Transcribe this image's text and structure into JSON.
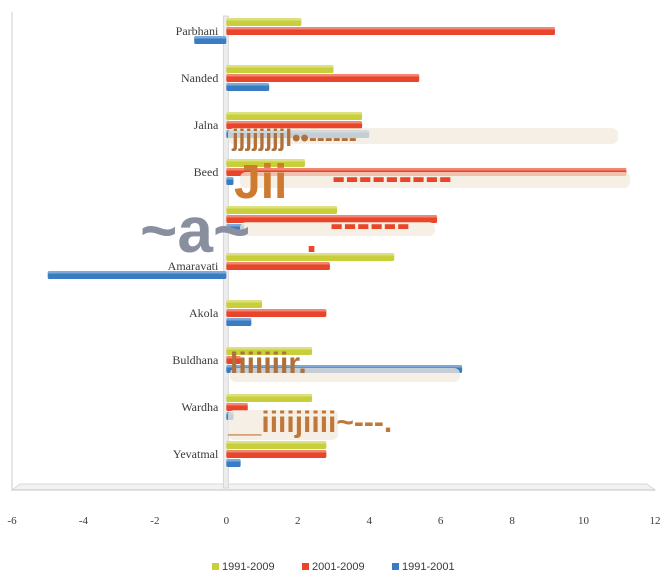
{
  "chart_data": {
    "type": "bar",
    "orientation": "horizontal",
    "categories": [
      "Parbhani",
      "Nanded",
      "Jalna",
      "Beed",
      "",
      "Amaravati",
      "Akola",
      "Buldhana",
      "Wardha",
      "Yevatmal"
    ],
    "series": [
      {
        "name": "1991-2009",
        "color": "#c9cf3a",
        "values": [
          2.1,
          3.0,
          3.8,
          2.2,
          3.1,
          4.7,
          1.0,
          2.4,
          2.4,
          2.8
        ]
      },
      {
        "name": "2001-2009",
        "color": "#e8452a",
        "values": [
          9.2,
          5.4,
          3.8,
          11.2,
          5.9,
          2.9,
          2.8,
          0.4,
          0.6,
          2.8
        ]
      },
      {
        "name": "1991-2001",
        "color": "#3a7cc4",
        "values": [
          -0.9,
          1.2,
          4.0,
          0.2,
          0.5,
          -5.0,
          0.7,
          6.6,
          0.2,
          0.4
        ]
      }
    ],
    "xlim": [
      -6,
      12
    ],
    "xticks": [
      "-6",
      "-4",
      "-2",
      "0",
      "2",
      "4",
      "6",
      "8",
      "10",
      "12"
    ],
    "grid": false,
    "legend_position": "bottom"
  },
  "ocr_artifacts": [
    {
      "text": "jjjjjjjjl••------",
      "color": "#b0703a"
    },
    {
      "text": "Jii",
      "color": "#d07a30"
    },
    {
      "text": "---------",
      "color": "#e8452a"
    },
    {
      "text": "~a~",
      "color": "#8a8fa0"
    },
    {
      "text": "------",
      "color": "#e8452a"
    },
    {
      "text": ".",
      "color": "#e8452a"
    },
    {
      "text": "liiiiiir.",
      "color": "#b0703a"
    },
    {
      "text": "__iiiijiiii~---.",
      "color": "#c0783a"
    }
  ]
}
